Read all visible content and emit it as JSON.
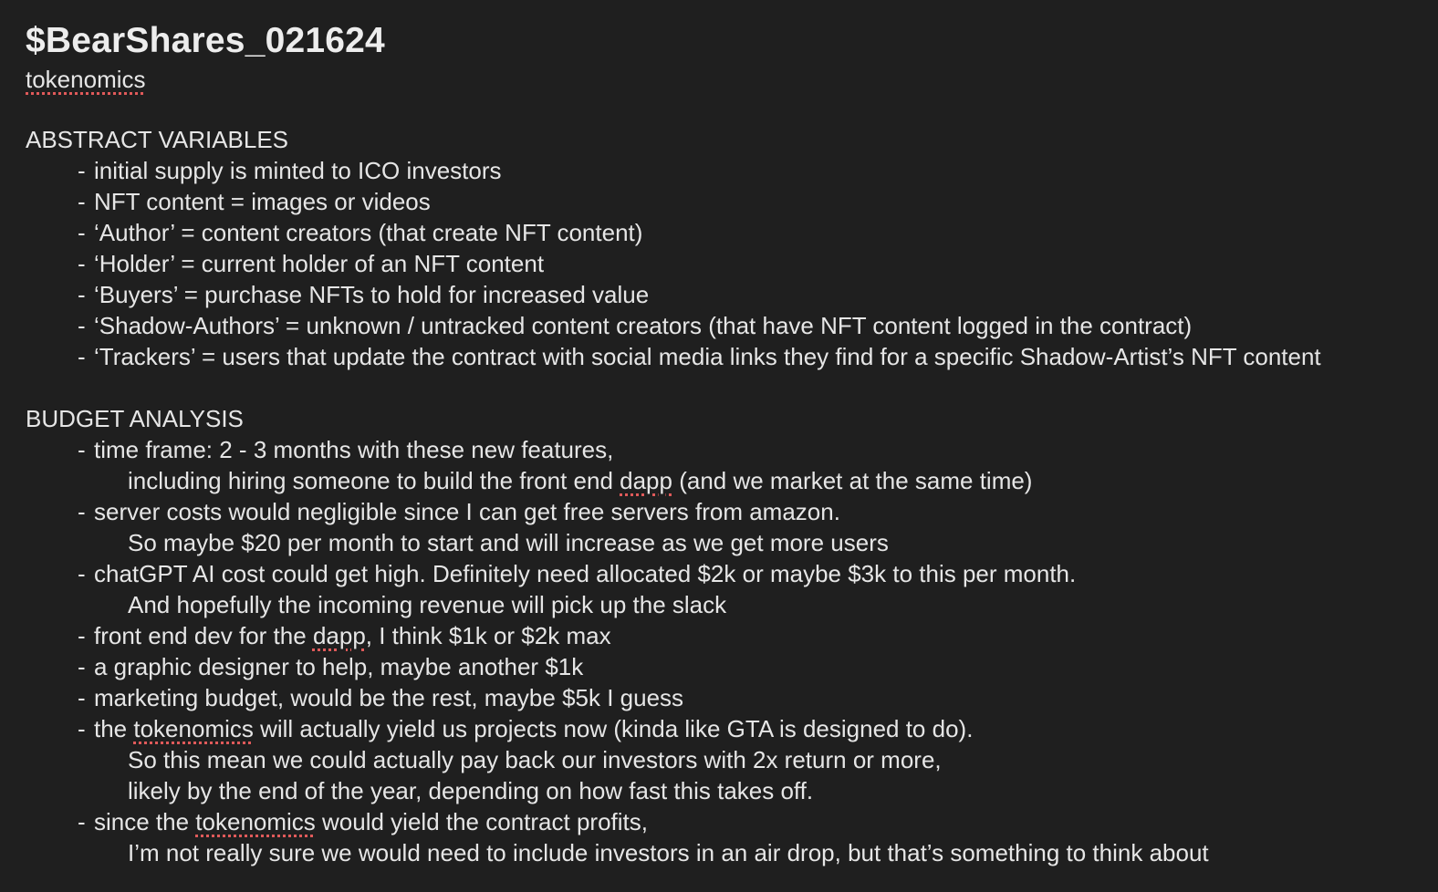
{
  "note": {
    "title": "$BearShares_021624",
    "subtitle": "tokenomics"
  },
  "abstract": {
    "heading": "ABSTRACT VARIABLES",
    "items": [
      "initial supply is minted to ICO investors",
      "NFT content = images or videos",
      "‘Author’ = content creators (that create NFT content)",
      "‘Holder’ = current holder of an NFT content",
      "‘Buyers’ = purchase NFTs to hold for increased value",
      "‘Shadow-Authors’ = unknown / untracked content creators (that have NFT content logged in the contract)",
      "‘Trackers’ = users that update the contract with social media links they find for a specific Shadow-Artist’s NFT content"
    ]
  },
  "budget": {
    "heading": "BUDGET ANALYSIS",
    "item0": "time frame: 2 - 3 months with these new features,",
    "item0_cont_a": "including hiring someone to build the front end ",
    "item0_cont_word": "dapp",
    "item0_cont_b": " (and we market at the same time)",
    "item1": "server costs would negligible since I can get free servers from amazon.",
    "item1_cont": "So maybe $20 per month to start and will increase as we get more users",
    "item2": "chatGPT AI cost could get high. Definitely need allocated $2k or maybe $3k to this per month.",
    "item2_cont": "And hopefully the incoming revenue will pick up the slack",
    "item3_a": "front end dev for the ",
    "item3_word": "dapp",
    "item3_b": ", I think $1k or $2k max",
    "item4": "a graphic designer to help, maybe another $1k",
    "item5": "marketing budget, would be the rest, maybe $5k I guess",
    "item6_a": "the ",
    "item6_word": "tokenomics",
    "item6_b": " will actually yield us projects now (kinda like GTA is designed to do).",
    "item6_cont1": "So this mean we could actually pay back our investors with 2x return or more,",
    "item6_cont2": "likely by the end of the year, depending on how fast this takes off.",
    "item7_a": "since the ",
    "item7_word": "tokenomics",
    "item7_b": " would yield the contract profits,",
    "item7_cont": "I’m not really sure we would need to include investors in an air drop, but that’s something to think about"
  }
}
